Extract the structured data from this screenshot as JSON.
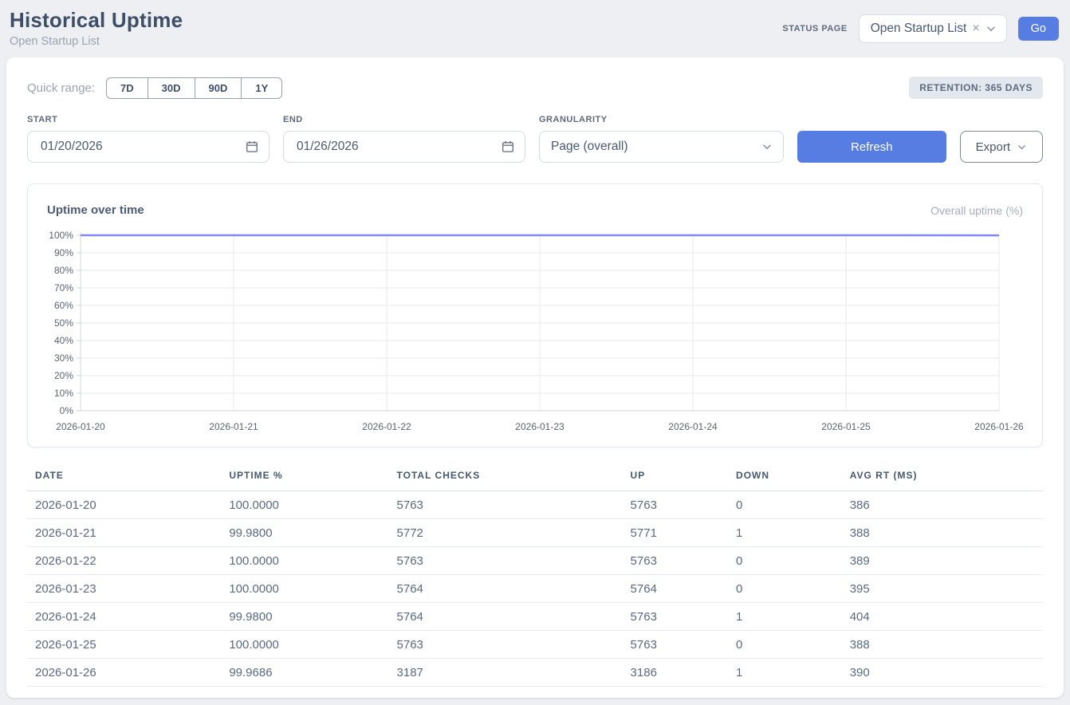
{
  "header": {
    "title": "Historical Uptime",
    "subtitle": "Open Startup List",
    "status_page_label": "STATUS PAGE",
    "status_page_value": "Open Startup List",
    "clear_icon": "×",
    "go_label": "Go"
  },
  "filters": {
    "quick_range_label": "Quick range:",
    "quick_ranges": [
      "7D",
      "30D",
      "90D",
      "1Y"
    ],
    "retention_badge": "RETENTION: 365 DAYS",
    "start_label": "START",
    "start_value": "01/20/2026",
    "end_label": "END",
    "end_value": "01/26/2026",
    "granularity_label": "GRANULARITY",
    "granularity_value": "Page (overall)",
    "refresh_label": "Refresh",
    "export_label": "Export"
  },
  "colors": {
    "accent_blue": "#587de2",
    "line_purple": "#8488ee",
    "page_background": "#edeff3"
  },
  "chart_data": {
    "type": "line",
    "title": "Uptime over time",
    "categories": [
      "2026-01-20",
      "2026-01-21",
      "2026-01-22",
      "2026-01-23",
      "2026-01-24",
      "2026-01-25",
      "2026-01-26"
    ],
    "series": [
      {
        "name": "Overall uptime (%)",
        "values": [
          100.0,
          99.98,
          100.0,
          100.0,
          99.98,
          100.0,
          99.9686
        ]
      }
    ],
    "xlabel": "",
    "ylabel": "",
    "ylim": [
      0,
      100
    ],
    "y_ticks": [
      0,
      10,
      20,
      30,
      40,
      50,
      60,
      70,
      80,
      90,
      100
    ],
    "y_tick_suffix": "%",
    "grid": true,
    "legend_position": "top-right",
    "line_color": "#8488ee",
    "grid_color": "#e6e8ec",
    "axis_color": "#d2d6dc"
  },
  "table": {
    "columns": [
      "DATE",
      "UPTIME %",
      "TOTAL CHECKS",
      "UP",
      "DOWN",
      "AVG RT (MS)"
    ],
    "rows": [
      [
        "2026-01-20",
        "100.0000",
        "5763",
        "5763",
        "0",
        "386"
      ],
      [
        "2026-01-21",
        "99.9800",
        "5772",
        "5771",
        "1",
        "388"
      ],
      [
        "2026-01-22",
        "100.0000",
        "5763",
        "5763",
        "0",
        "389"
      ],
      [
        "2026-01-23",
        "100.0000",
        "5764",
        "5764",
        "0",
        "395"
      ],
      [
        "2026-01-24",
        "99.9800",
        "5764",
        "5763",
        "1",
        "404"
      ],
      [
        "2026-01-25",
        "100.0000",
        "5763",
        "5763",
        "0",
        "388"
      ],
      [
        "2026-01-26",
        "99.9686",
        "3187",
        "3186",
        "1",
        "390"
      ]
    ]
  }
}
